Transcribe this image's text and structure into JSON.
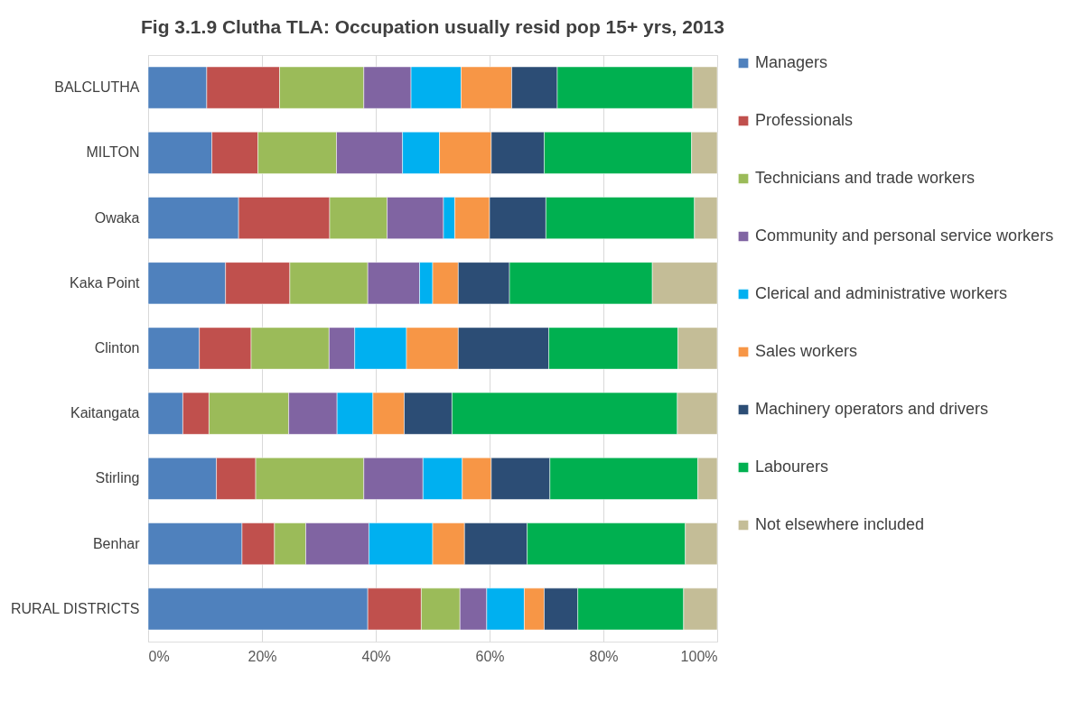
{
  "chart_data": {
    "type": "bar",
    "orientation": "horizontal",
    "stacked": true,
    "title": "Fig 3.1.9 Clutha TLA: Occupation usually resid pop 15+ yrs, 2013",
    "categories": [
      "BALCLUTHA",
      "MILTON",
      "Owaka",
      "Kaka Point",
      "Clinton",
      "Kaitangata",
      "Stirling",
      "Benhar",
      "RURAL DISTRICTS"
    ],
    "series": [
      {
        "name": "Managers",
        "color": "#4f81bd",
        "values": [
          10.3,
          11.2,
          15.9,
          13.6,
          9.0,
          6.1,
          12.0,
          16.5,
          38.6
        ]
      },
      {
        "name": "Professionals",
        "color": "#c0504d",
        "values": [
          12.8,
          8.1,
          16.0,
          11.3,
          9.1,
          4.6,
          6.9,
          5.7,
          9.4
        ]
      },
      {
        "name": "Technicians and trade workers",
        "color": "#9bbb59",
        "values": [
          14.8,
          13.8,
          10.1,
          13.7,
          13.7,
          14.0,
          19.0,
          5.5,
          6.8
        ]
      },
      {
        "name": "Community and personal service workers",
        "color": "#8064a2",
        "values": [
          8.3,
          11.6,
          9.9,
          9.1,
          4.5,
          8.5,
          10.4,
          11.1,
          4.7
        ]
      },
      {
        "name": "Clerical and administrative workers",
        "color": "#00b0f0",
        "values": [
          8.8,
          6.5,
          2.0,
          2.3,
          9.1,
          6.3,
          6.9,
          11.2,
          6.6
        ]
      },
      {
        "name": "Sales workers",
        "color": "#f79646",
        "values": [
          8.9,
          9.1,
          6.1,
          4.5,
          9.1,
          5.5,
          5.1,
          5.6,
          3.5
        ]
      },
      {
        "name": "Machinery operators and drivers",
        "color": "#2c4d75",
        "values": [
          8.0,
          9.3,
          9.9,
          9.0,
          15.9,
          8.4,
          10.3,
          11.0,
          5.9
        ]
      },
      {
        "name": "Labourers",
        "color": "#00b050",
        "values": [
          23.8,
          25.9,
          26.1,
          25.1,
          22.7,
          39.6,
          26.0,
          27.8,
          18.6
        ]
      },
      {
        "name": "Not elsewhere included",
        "color": "#c4bd97",
        "values": [
          4.3,
          4.5,
          4.0,
          11.4,
          6.9,
          7.0,
          3.4,
          5.6,
          5.9
        ]
      }
    ],
    "xlim": [
      0,
      100
    ],
    "xticks": [
      {
        "value": 0,
        "label": "0%"
      },
      {
        "value": 20,
        "label": "20%"
      },
      {
        "value": 40,
        "label": "40%"
      },
      {
        "value": 60,
        "label": "60%"
      },
      {
        "value": 80,
        "label": "80%"
      },
      {
        "value": 100,
        "label": "100%"
      }
    ],
    "grid": "x",
    "legend": "right"
  }
}
